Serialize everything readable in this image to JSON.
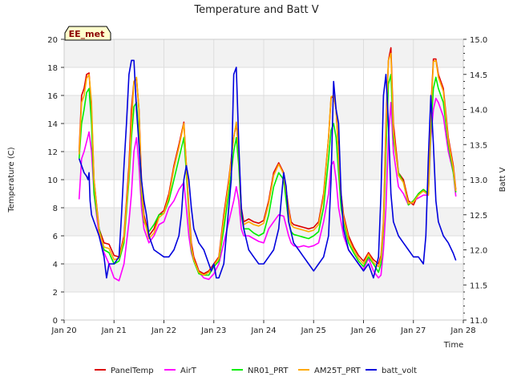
{
  "chart_data": {
    "type": "line",
    "title": "Temperature and Batt V",
    "xlabel": "Time",
    "ylabel": "Temperature (C)",
    "y2label": "Batt V",
    "badge": "EE_met",
    "xlim": [
      0,
      8
    ],
    "ylim": [
      0,
      20
    ],
    "y2lim": [
      11.0,
      15.0
    ],
    "x_ticks": [
      0,
      1,
      2,
      3,
      4,
      5,
      6,
      7,
      8
    ],
    "x_tick_labels": [
      "Jan 20",
      "Jan 21",
      "Jan 22",
      "Jan 23",
      "Jan 24",
      "Jan 25",
      "Jan 26",
      "Jan 27",
      "Jan 28"
    ],
    "y_ticks": [
      0,
      2,
      4,
      6,
      8,
      10,
      12,
      14,
      16,
      18,
      20
    ],
    "y2_ticks": [
      11.0,
      11.5,
      12.0,
      12.5,
      13.0,
      13.5,
      14.0,
      14.5,
      15.0
    ],
    "y_tick_labels": [
      "0",
      "2",
      "4",
      "6",
      "8",
      "10",
      "12",
      "14",
      "16",
      "18",
      "20"
    ],
    "y2_tick_labels": [
      "11.0",
      "11.5",
      "12.0",
      "12.5",
      "13.0",
      "13.5",
      "14.0",
      "14.5",
      "15.0"
    ],
    "grid": true,
    "legend_position": "bottom",
    "series": [
      {
        "name": "PanelTemp",
        "color": "#dd0000",
        "axis": "left",
        "x": [
          0.3,
          0.35,
          0.4,
          0.45,
          0.5,
          0.55,
          0.6,
          0.7,
          0.8,
          0.9,
          1.0,
          1.1,
          1.2,
          1.3,
          1.35,
          1.4,
          1.45,
          1.5,
          1.55,
          1.6,
          1.7,
          1.8,
          1.9,
          2.0,
          2.1,
          2.2,
          2.3,
          2.4,
          2.45,
          2.5,
          2.55,
          2.6,
          2.7,
          2.8,
          2.9,
          3.0,
          3.1,
          3.2,
          3.3,
          3.4,
          3.45,
          3.5,
          3.55,
          3.6,
          3.7,
          3.8,
          3.9,
          4.0,
          4.1,
          4.2,
          4.3,
          4.4,
          4.5,
          4.55,
          4.6,
          4.7,
          4.8,
          4.9,
          5.0,
          5.1,
          5.2,
          5.3,
          5.35,
          5.4,
          5.45,
          5.5,
          5.55,
          5.6,
          5.7,
          5.8,
          5.9,
          6.0,
          6.1,
          6.2,
          6.3,
          6.35,
          6.4,
          6.45,
          6.5,
          6.55,
          6.6,
          6.7,
          6.8,
          6.9,
          7.0,
          7.1,
          7.2,
          7.3,
          7.35,
          7.4,
          7.45,
          7.5,
          7.6,
          7.7,
          7.8,
          7.85
        ],
        "y": [
          12,
          16,
          16.5,
          17.5,
          17.6,
          15,
          10,
          6.5,
          5.5,
          5.4,
          4.6,
          4.5,
          6,
          11,
          15,
          17,
          17.2,
          15,
          10,
          7.5,
          6,
          6.5,
          7.5,
          7.8,
          9,
          11,
          12.5,
          14.1,
          11,
          8,
          5.5,
          4.5,
          3.5,
          3.3,
          3.5,
          4,
          4.5,
          7.5,
          10,
          13,
          14,
          12,
          8,
          7,
          7.2,
          7,
          6.9,
          7.1,
          8.5,
          10.5,
          11.2,
          10.5,
          8,
          7,
          6.8,
          6.7,
          6.6,
          6.5,
          6.6,
          7,
          9,
          13,
          15.8,
          16,
          15,
          12,
          9,
          7.5,
          6,
          5.2,
          4.6,
          4.2,
          4.8,
          4.3,
          4,
          4.6,
          7,
          14,
          18.5,
          19.4,
          14,
          10.5,
          10,
          8.5,
          8.2,
          9,
          9.3,
          9,
          15,
          18.6,
          18.6,
          17.5,
          16.5,
          13,
          11,
          9.3
        ]
      },
      {
        "name": "AirT",
        "color": "#ff00ff",
        "axis": "left",
        "x": [
          0.3,
          0.35,
          0.4,
          0.45,
          0.5,
          0.55,
          0.6,
          0.7,
          0.8,
          0.9,
          1.0,
          1.1,
          1.2,
          1.3,
          1.35,
          1.4,
          1.45,
          1.5,
          1.55,
          1.6,
          1.7,
          1.8,
          1.9,
          2.0,
          2.1,
          2.2,
          2.3,
          2.4,
          2.45,
          2.5,
          2.55,
          2.6,
          2.7,
          2.8,
          2.9,
          3.0,
          3.1,
          3.2,
          3.3,
          3.4,
          3.45,
          3.5,
          3.55,
          3.6,
          3.7,
          3.8,
          3.9,
          4.0,
          4.1,
          4.2,
          4.3,
          4.4,
          4.5,
          4.55,
          4.6,
          4.7,
          4.8,
          4.9,
          5.0,
          5.1,
          5.2,
          5.3,
          5.35,
          5.4,
          5.45,
          5.5,
          5.55,
          5.6,
          5.7,
          5.8,
          5.9,
          6.0,
          6.1,
          6.2,
          6.3,
          6.35,
          6.4,
          6.45,
          6.5,
          6.55,
          6.6,
          6.7,
          6.8,
          6.9,
          7.0,
          7.1,
          7.2,
          7.3,
          7.35,
          7.4,
          7.45,
          7.5,
          7.6,
          7.7,
          7.8,
          7.85
        ],
        "y": [
          8.6,
          11.5,
          12,
          12.7,
          13.4,
          12,
          9,
          6,
          4.8,
          4,
          3,
          2.8,
          4,
          7,
          9,
          12,
          13,
          11,
          8,
          6.5,
          5.5,
          6,
          6.8,
          7,
          8,
          8.5,
          9.3,
          9.8,
          8,
          6,
          4.8,
          4.2,
          3.4,
          3,
          2.9,
          3.3,
          4,
          5.5,
          7,
          8.5,
          9.5,
          8.5,
          6.5,
          6,
          6,
          5.8,
          5.6,
          5.5,
          6.5,
          7,
          7.5,
          7.4,
          6,
          5.5,
          5.3,
          5.2,
          5.3,
          5.2,
          5.3,
          5.5,
          7,
          9,
          11,
          11.3,
          10,
          8,
          7,
          6,
          5,
          4.5,
          4,
          3.6,
          4.4,
          3.5,
          3,
          3.2,
          5,
          8,
          13,
          15.5,
          12,
          9.5,
          9,
          8.2,
          8.5,
          8.7,
          8.9,
          8.9,
          13,
          15,
          15.8,
          15.5,
          14.5,
          12,
          10.5,
          8.8
        ]
      },
      {
        "name": "NR01_PRT",
        "color": "#00ee00",
        "axis": "left",
        "x": [
          0.3,
          0.35,
          0.4,
          0.45,
          0.5,
          0.55,
          0.6,
          0.7,
          0.8,
          0.9,
          1.0,
          1.1,
          1.2,
          1.3,
          1.35,
          1.4,
          1.45,
          1.5,
          1.55,
          1.6,
          1.7,
          1.8,
          1.9,
          2.0,
          2.1,
          2.2,
          2.3,
          2.4,
          2.45,
          2.5,
          2.55,
          2.6,
          2.7,
          2.8,
          2.9,
          3.0,
          3.1,
          3.2,
          3.3,
          3.4,
          3.45,
          3.5,
          3.55,
          3.6,
          3.7,
          3.8,
          3.9,
          4.0,
          4.1,
          4.2,
          4.3,
          4.4,
          4.5,
          4.55,
          4.6,
          4.7,
          4.8,
          4.9,
          5.0,
          5.1,
          5.2,
          5.3,
          5.35,
          5.4,
          5.45,
          5.5,
          5.55,
          5.6,
          5.7,
          5.8,
          5.9,
          6.0,
          6.1,
          6.2,
          6.3,
          6.35,
          6.4,
          6.45,
          6.5,
          6.55,
          6.6,
          6.7,
          6.8,
          6.9,
          7.0,
          7.1,
          7.2,
          7.3,
          7.35,
          7.4,
          7.45,
          7.5,
          7.6,
          7.7,
          7.8,
          7.85
        ],
        "y": [
          11.5,
          14,
          15,
          16.2,
          16.5,
          14,
          9,
          6.5,
          5,
          4.8,
          4,
          4.2,
          5.5,
          10,
          13,
          15.2,
          15.5,
          13,
          9,
          7,
          6.3,
          6.8,
          7.5,
          7.6,
          8.5,
          10,
          11.5,
          13,
          10.5,
          7.5,
          5,
          4.2,
          3.3,
          3.2,
          3.2,
          3.8,
          4.2,
          6.5,
          9,
          12,
          13,
          11,
          7.5,
          6.5,
          6.5,
          6.2,
          6,
          6.2,
          7.5,
          9.5,
          10.5,
          10,
          7,
          6.3,
          6.1,
          6,
          5.9,
          5.8,
          6,
          6.3,
          8,
          11.5,
          13.5,
          14,
          13,
          10.5,
          8,
          7,
          5.5,
          4.8,
          4.2,
          3.8,
          4.5,
          4,
          3.4,
          4,
          6.5,
          12,
          16.8,
          17.5,
          13,
          10.5,
          9.8,
          8.2,
          8.5,
          9,
          9.3,
          9,
          13.5,
          16.5,
          17.3,
          16.5,
          15.5,
          12.5,
          10.5,
          9.1
        ]
      },
      {
        "name": "AM25T_PRT",
        "color": "#ffaa00",
        "axis": "left",
        "x": [
          0.3,
          0.35,
          0.4,
          0.45,
          0.5,
          0.55,
          0.6,
          0.7,
          0.8,
          0.9,
          1.0,
          1.1,
          1.2,
          1.3,
          1.35,
          1.4,
          1.45,
          1.5,
          1.55,
          1.6,
          1.7,
          1.8,
          1.9,
          2.0,
          2.1,
          2.2,
          2.3,
          2.4,
          2.45,
          2.5,
          2.55,
          2.6,
          2.7,
          2.8,
          2.9,
          3.0,
          3.1,
          3.2,
          3.3,
          3.4,
          3.45,
          3.5,
          3.55,
          3.6,
          3.7,
          3.8,
          3.9,
          4.0,
          4.1,
          4.2,
          4.3,
          4.4,
          4.5,
          4.55,
          4.6,
          4.7,
          4.8,
          4.9,
          5.0,
          5.1,
          5.2,
          5.3,
          5.35,
          5.4,
          5.45,
          5.5,
          5.55,
          5.6,
          5.7,
          5.8,
          5.9,
          6.0,
          6.1,
          6.2,
          6.3,
          6.35,
          6.4,
          6.45,
          6.5,
          6.55,
          6.6,
          6.7,
          6.8,
          6.9,
          7.0,
          7.1,
          7.2,
          7.3,
          7.35,
          7.4,
          7.45,
          7.5,
          7.6,
          7.7,
          7.8,
          7.85
        ],
        "y": [
          11.8,
          15.5,
          16,
          17.2,
          17.5,
          15.5,
          10,
          6.3,
          5.2,
          5.1,
          4.3,
          4.4,
          5.8,
          10.5,
          14,
          17,
          17.3,
          15,
          9.5,
          7.2,
          5.8,
          6.2,
          7.3,
          7.6,
          8.8,
          10.8,
          12.3,
          14,
          11,
          7.8,
          5.2,
          4.3,
          3.4,
          3.2,
          3.4,
          3.9,
          4.4,
          7.2,
          9.8,
          13,
          14.1,
          12,
          7.8,
          6.8,
          7,
          6.8,
          6.7,
          6.9,
          8.3,
          10.3,
          11.1,
          10.4,
          7.8,
          6.8,
          6.6,
          6.5,
          6.4,
          6.3,
          6.4,
          6.8,
          8.8,
          13,
          15.9,
          16,
          15,
          11.5,
          8.8,
          7.3,
          5.8,
          5,
          4.4,
          4,
          4.7,
          4.1,
          3.8,
          4.4,
          6.8,
          13.5,
          18.5,
          19,
          13.5,
          10.3,
          9.8,
          8.3,
          8.4,
          8.9,
          9.2,
          8.9,
          14.5,
          18.4,
          18.5,
          17.3,
          16.3,
          12.8,
          10.8,
          9.2
        ]
      },
      {
        "name": "batt_volt",
        "color": "#0000dd",
        "axis": "right",
        "x": [
          0.3,
          0.35,
          0.4,
          0.45,
          0.48,
          0.5,
          0.52,
          0.55,
          0.6,
          0.7,
          0.8,
          0.85,
          0.9,
          1.0,
          1.1,
          1.15,
          1.2,
          1.25,
          1.3,
          1.35,
          1.4,
          1.45,
          1.5,
          1.55,
          1.6,
          1.65,
          1.7,
          1.8,
          1.9,
          2.0,
          2.1,
          2.2,
          2.3,
          2.35,
          2.4,
          2.45,
          2.5,
          2.55,
          2.6,
          2.7,
          2.8,
          2.9,
          2.95,
          3.0,
          3.05,
          3.1,
          3.2,
          3.3,
          3.35,
          3.4,
          3.45,
          3.5,
          3.55,
          3.6,
          3.7,
          3.8,
          3.9,
          4.0,
          4.1,
          4.2,
          4.3,
          4.35,
          4.4,
          4.45,
          4.5,
          4.6,
          4.7,
          4.8,
          4.9,
          5.0,
          5.1,
          5.2,
          5.3,
          5.35,
          5.4,
          5.45,
          5.5,
          5.55,
          5.6,
          5.7,
          5.8,
          5.9,
          6.0,
          6.1,
          6.2,
          6.3,
          6.35,
          6.4,
          6.45,
          6.5,
          6.55,
          6.6,
          6.7,
          6.8,
          6.9,
          7.0,
          7.1,
          7.2,
          7.25,
          7.3,
          7.35,
          7.4,
          7.45,
          7.5,
          7.6,
          7.7,
          7.8,
          7.85
        ],
        "y": [
          13.3,
          13.2,
          13.1,
          13.05,
          13.0,
          13.1,
          12.7,
          12.5,
          12.4,
          12.2,
          11.9,
          11.6,
          11.8,
          11.8,
          11.9,
          12.5,
          13.2,
          13.8,
          14.5,
          14.7,
          14.7,
          14.0,
          13.5,
          13.0,
          12.7,
          12.5,
          12.2,
          12.0,
          11.95,
          11.9,
          11.9,
          12.0,
          12.2,
          12.5,
          13.0,
          13.2,
          13.0,
          12.6,
          12.3,
          12.1,
          12.0,
          11.8,
          11.7,
          11.8,
          11.6,
          11.6,
          11.8,
          12.6,
          13.0,
          14.5,
          14.6,
          13.5,
          12.6,
          12.3,
          12.0,
          11.9,
          11.8,
          11.8,
          11.9,
          12.0,
          12.3,
          12.7,
          13.1,
          12.9,
          12.4,
          12.1,
          12.0,
          11.9,
          11.8,
          11.7,
          11.8,
          11.9,
          12.2,
          13.0,
          14.4,
          14.0,
          13.8,
          12.8,
          12.3,
          12.0,
          11.9,
          11.8,
          11.7,
          11.8,
          11.6,
          11.9,
          12.8,
          14.2,
          14.5,
          13.8,
          12.8,
          12.4,
          12.2,
          12.1,
          12.0,
          11.9,
          11.9,
          11.8,
          12.2,
          13.3,
          14.2,
          13.5,
          12.7,
          12.4,
          12.2,
          12.1,
          11.95,
          11.85
        ]
      }
    ]
  }
}
